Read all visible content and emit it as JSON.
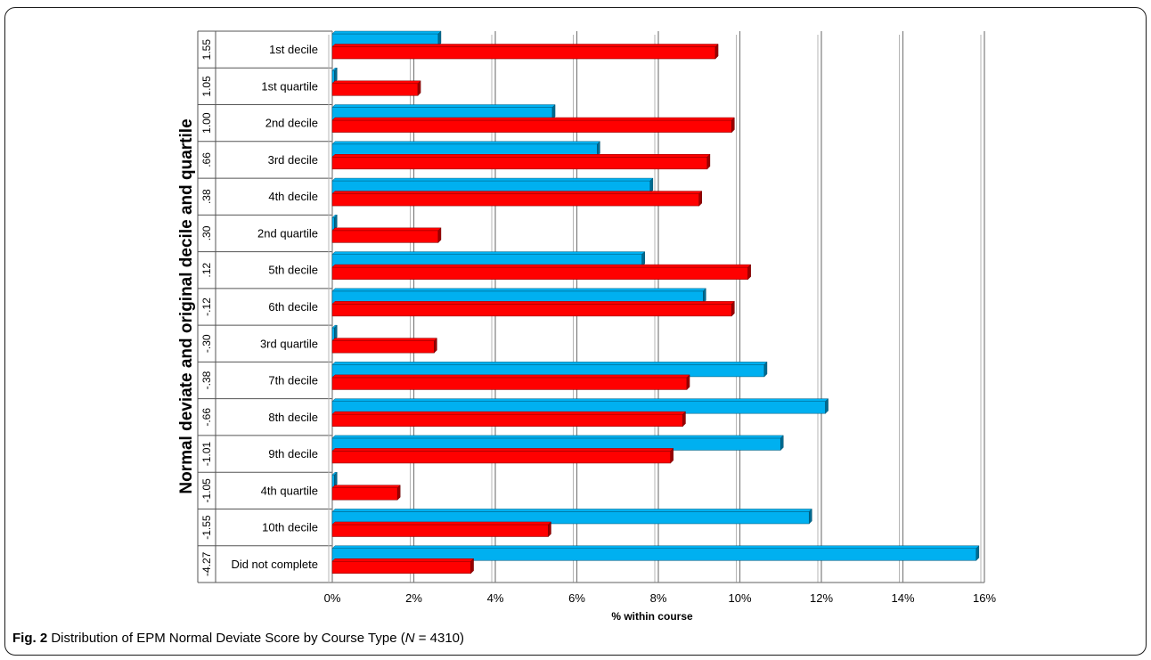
{
  "chart_data": {
    "type": "bar",
    "orientation": "horizontal",
    "title": "",
    "ylabel": "Normal deviate and original decile and quartile",
    "xlabel": "% within course",
    "xlim": [
      0,
      16
    ],
    "xticks": [
      "0%",
      "2%",
      "4%",
      "6%",
      "8%",
      "10%",
      "12%",
      "14%",
      "16%"
    ],
    "grid": true,
    "legend": "none",
    "categories": [
      "1st decile",
      "1st quartile",
      "2nd decile",
      "3rd decile",
      "4th decile",
      "2nd quartile",
      "5th decile",
      "6th decile",
      "3rd quartile",
      "7th decile",
      "8th decile",
      "9th decile",
      "4th quartile",
      "10th decile",
      "Did not complete"
    ],
    "deviates": [
      "1.55",
      "1.05",
      "1.00",
      ".66",
      ".38",
      ".30",
      ".12",
      "-.12",
      "-.30",
      "-.38",
      "-.66",
      "-1.01",
      "-1.05",
      "-1.55",
      "-4.27"
    ],
    "series": [
      {
        "color": "#00B0F0",
        "values": [
          2.6,
          0.05,
          5.4,
          6.5,
          7.8,
          0.05,
          7.6,
          9.1,
          0.05,
          10.6,
          12.1,
          11.0,
          0.05,
          11.7,
          15.8
        ]
      },
      {
        "color": "#FF0000",
        "values": [
          9.4,
          2.1,
          9.8,
          9.2,
          9.0,
          2.6,
          10.2,
          9.8,
          2.5,
          8.7,
          8.6,
          8.3,
          1.6,
          5.3,
          3.4
        ]
      }
    ]
  },
  "caption": {
    "label": "Fig. 2",
    "text_before": " Distribution of EPM Normal Deviate Score by Course Type (",
    "n_symbol": "N",
    "text_after": " = 4310)"
  }
}
